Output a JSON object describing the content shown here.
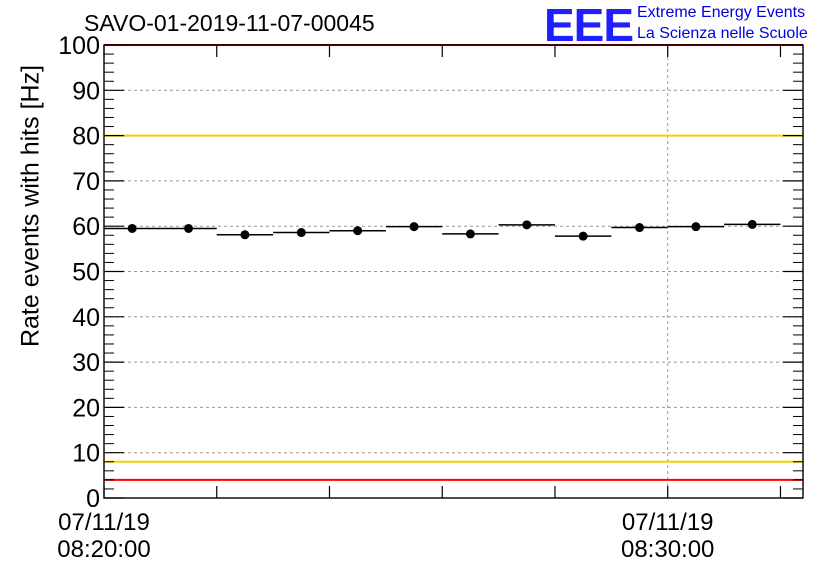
{
  "header": {
    "title": "SAVO-01-2019-11-07-00045",
    "logo_mark": "EEE",
    "logo_line1": "Extreme Energy Events",
    "logo_line2": "La Scienza nelle Scuole"
  },
  "colors": {
    "red_limit": "#ff0000",
    "yellow_limit": "#f2d000",
    "marker": "#000000",
    "grid": "#9a9a9a",
    "logo": "#1f1fff"
  },
  "chart_data": {
    "type": "scatter",
    "title": "SAVO-01-2019-11-07-00045",
    "ylabel": "Rate events with hits [Hz]",
    "xlabel": "",
    "ylim": [
      0,
      100
    ],
    "yticks": [
      "0",
      "10",
      "20",
      "30",
      "40",
      "50",
      "60",
      "70",
      "80",
      "90",
      "100"
    ],
    "xlim_minutes": [
      0,
      12.4
    ],
    "xticks": [
      {
        "minute": 0,
        "date": "07/11/19",
        "time": "08:20:00"
      },
      {
        "minute": 10,
        "date": "07/11/19",
        "time": "08:30:00"
      }
    ],
    "grid": true,
    "bin_width_minutes": 1,
    "series": [
      {
        "name": "Rate events with hits",
        "x_minutes": [
          0.5,
          1.5,
          2.5,
          3.5,
          4.5,
          5.5,
          6.5,
          7.5,
          8.5,
          9.5,
          10.5,
          11.5
        ],
        "values": [
          59.5,
          59.5,
          58.1,
          58.6,
          59.0,
          59.9,
          58.3,
          60.3,
          57.8,
          59.7,
          59.9,
          60.4
        ]
      }
    ],
    "reference_lines": [
      {
        "label": "upper red limit",
        "y": 100,
        "color": "#ff0000"
      },
      {
        "label": "upper yellow limit",
        "y": 80,
        "color": "#f2d000"
      },
      {
        "label": "lower yellow limit",
        "y": 8,
        "color": "#f2d000"
      },
      {
        "label": "lower red limit",
        "y": 4,
        "color": "#ff0000"
      }
    ]
  }
}
